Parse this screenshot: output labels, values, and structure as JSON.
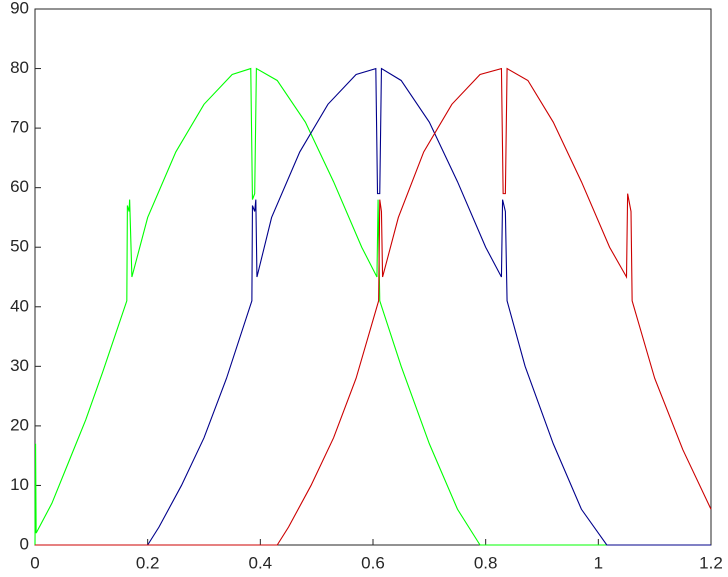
{
  "chart_data": {
    "type": "line",
    "xlim": [
      0,
      1.2
    ],
    "xticks": [
      0,
      0.2,
      0.4,
      0.6,
      0.8,
      1,
      1.2
    ],
    "ylim": [
      0,
      90
    ],
    "yticks": [
      0,
      10,
      20,
      30,
      40,
      50,
      60,
      70,
      80,
      90
    ],
    "grid": false,
    "series": [
      {
        "color": "#00ff00",
        "x": [
          0,
          0.001,
          0.002,
          0.03,
          0.06,
          0.09,
          0.12,
          0.163,
          0.164,
          0.167,
          0.168,
          0.172,
          0.2,
          0.25,
          0.3,
          0.35,
          0.383,
          0.386,
          0.39,
          0.393,
          0.43,
          0.48,
          0.53,
          0.58,
          0.607,
          0.609,
          0.612,
          0.65,
          0.7,
          0.75,
          0.79,
          1.2
        ],
        "values": [
          0,
          17,
          2,
          7,
          14,
          21,
          29,
          41,
          57,
          56,
          58,
          45,
          55,
          66,
          74,
          79,
          80,
          58,
          59,
          80,
          78,
          71,
          61,
          50,
          45,
          58,
          41,
          30,
          17,
          6,
          0,
          0
        ]
      },
      {
        "color": "#00008b",
        "x": [
          0,
          0.2,
          0.22,
          0.26,
          0.3,
          0.34,
          0.385,
          0.386,
          0.39,
          0.392,
          0.394,
          0.42,
          0.47,
          0.52,
          0.57,
          0.605,
          0.608,
          0.612,
          0.615,
          0.65,
          0.7,
          0.75,
          0.8,
          0.828,
          0.83,
          0.835,
          0.838,
          0.87,
          0.92,
          0.97,
          1.015,
          1.2
        ],
        "values": [
          0,
          0,
          3,
          10,
          18,
          28,
          41,
          57,
          56,
          58,
          45,
          55,
          66,
          74,
          79,
          80,
          59,
          59,
          80,
          78,
          71,
          61,
          50,
          45,
          58,
          56,
          41,
          30,
          17,
          6,
          0,
          0
        ]
      },
      {
        "color": "#cc0000",
        "x": [
          0,
          0.43,
          0.45,
          0.49,
          0.53,
          0.57,
          0.61,
          0.612,
          0.615,
          0.617,
          0.645,
          0.69,
          0.74,
          0.79,
          0.828,
          0.831,
          0.835,
          0.838,
          0.875,
          0.92,
          0.97,
          1.02,
          1.05,
          1.052,
          1.058,
          1.06,
          1.1,
          1.15,
          1.2
        ],
        "values": [
          0,
          0,
          3,
          10,
          18,
          28,
          41,
          58,
          56,
          45,
          55,
          66,
          74,
          79,
          80,
          59,
          59,
          80,
          78,
          71,
          61,
          50,
          45,
          59,
          56,
          41,
          28,
          16,
          6
        ]
      }
    ]
  }
}
